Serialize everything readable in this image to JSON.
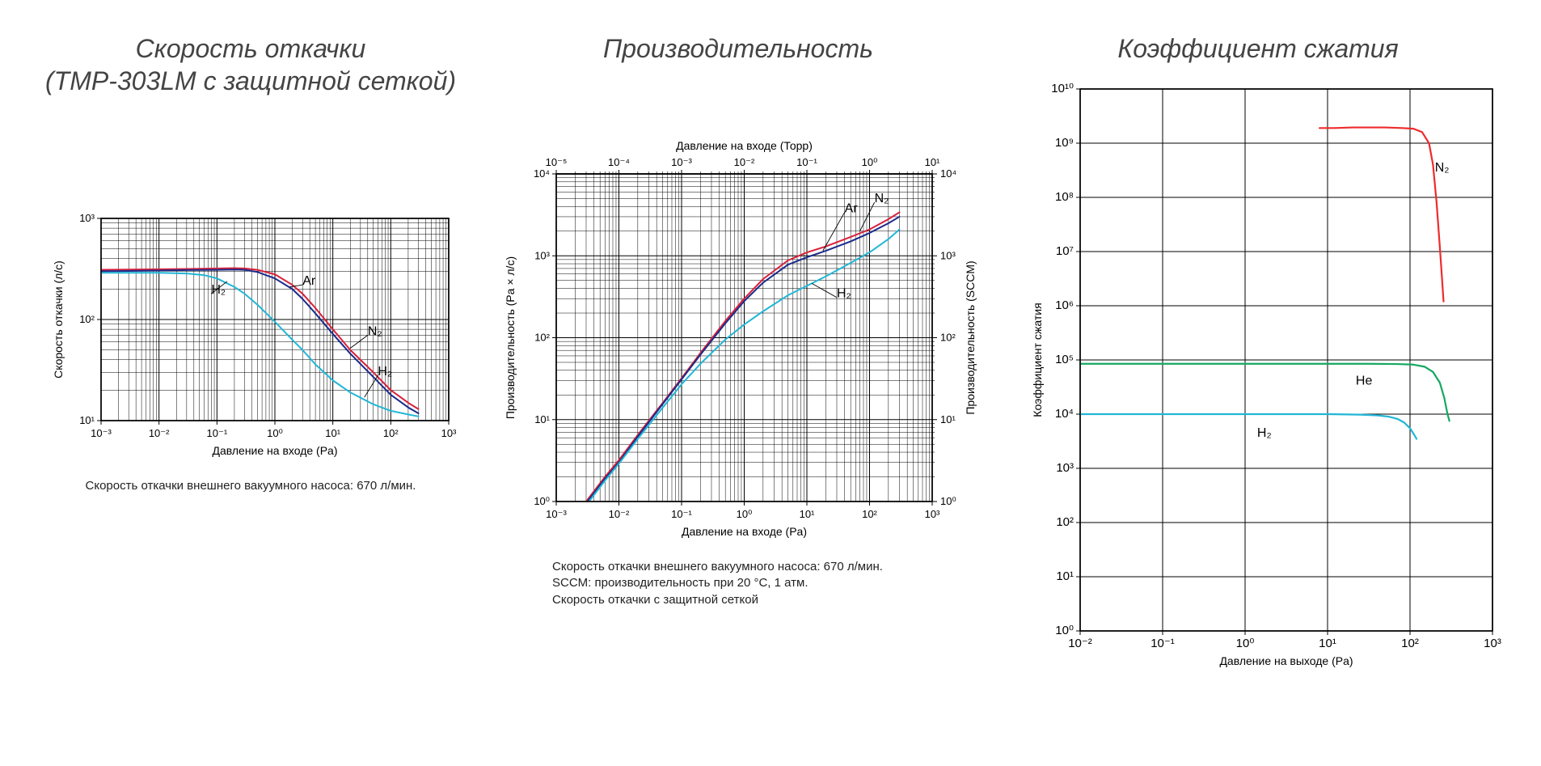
{
  "panels": {
    "pump_speed": {
      "title_line1": "Скорость откачки",
      "title_line2": "(TMP-303LM с защитной сеткой)",
      "chart": {
        "type": "line",
        "xscale": "log",
        "yscale": "log",
        "xlim": [
          0.001,
          1000
        ],
        "ylim": [
          10,
          1000
        ],
        "xticks": [
          0.001,
          0.01,
          0.1,
          1,
          10,
          100,
          1000
        ],
        "xtick_labels": [
          "10⁻³",
          "10⁻²",
          "10⁻¹",
          "10⁰",
          "10¹",
          "10²",
          "10³"
        ],
        "yticks": [
          10,
          100,
          1000
        ],
        "ytick_labels": [
          "10¹",
          "10²",
          "10³"
        ],
        "xlabel": "Давление на входе (Pa)",
        "ylabel": "Скорость откачки (л/с)",
        "background_color": "#ffffff",
        "grid_color": "#000000",
        "axis_color": "#000000",
        "line_width": 2,
        "label_fontsize": 14,
        "tick_fontsize": 13,
        "title_fontsize": 32,
        "series": [
          {
            "name": "N₂",
            "color": "#d8213a",
            "label": "N₂",
            "points": [
              [
                0.001,
                310
              ],
              [
                0.003,
                312
              ],
              [
                0.01,
                314
              ],
              [
                0.03,
                316
              ],
              [
                0.1,
                320
              ],
              [
                0.2,
                322
              ],
              [
                0.3,
                320
              ],
              [
                0.5,
                310
              ],
              [
                1,
                280
              ],
              [
                2,
                220
              ],
              [
                3,
                180
              ],
              [
                5,
                130
              ],
              [
                10,
                80
              ],
              [
                20,
                50
              ],
              [
                50,
                30
              ],
              [
                100,
                20
              ],
              [
                200,
                15
              ],
              [
                300,
                13
              ]
            ]
          },
          {
            "name": "Ar",
            "color": "#1a2b8a",
            "label": "Ar",
            "points": [
              [
                0.001,
                300
              ],
              [
                0.003,
                302
              ],
              [
                0.01,
                305
              ],
              [
                0.03,
                308
              ],
              [
                0.1,
                310
              ],
              [
                0.2,
                312
              ],
              [
                0.3,
                310
              ],
              [
                0.5,
                295
              ],
              [
                1,
                255
              ],
              [
                2,
                200
              ],
              [
                3,
                160
              ],
              [
                5,
                115
              ],
              [
                10,
                72
              ],
              [
                20,
                46
              ],
              [
                50,
                27
              ],
              [
                100,
                18
              ],
              [
                200,
                13.5
              ],
              [
                300,
                11.8
              ]
            ]
          },
          {
            "name": "H₂",
            "color": "#22b6d6",
            "label": "H₂",
            "points": [
              [
                0.001,
                290
              ],
              [
                0.003,
                290
              ],
              [
                0.01,
                290
              ],
              [
                0.03,
                285
              ],
              [
                0.06,
                275
              ],
              [
                0.1,
                255
              ],
              [
                0.2,
                210
              ],
              [
                0.3,
                180
              ],
              [
                0.5,
                140
              ],
              [
                1,
                95
              ],
              [
                2,
                63
              ],
              [
                3,
                50
              ],
              [
                5,
                36
              ],
              [
                10,
                25
              ],
              [
                20,
                19
              ],
              [
                50,
                14.5
              ],
              [
                100,
                12.5
              ],
              [
                200,
                11.5
              ],
              [
                300,
                11
              ]
            ]
          }
        ],
        "series_annot": [
          {
            "text": "Ar",
            "x": 3,
            "y": 220,
            "line_to": [
              1.8,
              210
            ]
          },
          {
            "text": "N₂",
            "x": 40,
            "y": 70,
            "line_to": [
              20,
              52
            ]
          },
          {
            "text": "H₂",
            "x": 0.08,
            "y": 180,
            "line_to": [
              0.15,
              238
            ]
          },
          {
            "text": "H₂",
            "x": 60,
            "y": 28,
            "line_to": [
              35,
              17
            ]
          }
        ]
      },
      "caption": "Скорость откачки внешнего вакуумного насоса: 670 л/мин."
    },
    "throughput": {
      "title": "Производительность",
      "chart": {
        "type": "line",
        "xscale": "log",
        "yscale": "log",
        "xlim": [
          0.001,
          1000
        ],
        "ylim": [
          1,
          10000
        ],
        "xticks": [
          0.001,
          0.01,
          0.1,
          1,
          10,
          100,
          1000
        ],
        "xtick_labels": [
          "10⁻³",
          "10⁻²",
          "10⁻¹",
          "10⁰",
          "10¹",
          "10²",
          "10³"
        ],
        "yticks": [
          1,
          10,
          100,
          1000,
          10000
        ],
        "ytick_labels": [
          "10⁰",
          "10¹",
          "10²",
          "10³",
          "10⁴"
        ],
        "xlabel": "Давление на входе (Pa)",
        "ylabel_left": "Производительность (Pa × л/с)",
        "ylabel_right": "Производительность (SCCM)",
        "x2lim": [
          1e-05,
          10
        ],
        "x2ticks": [
          1e-05,
          0.0001,
          0.001,
          0.01,
          0.1,
          1,
          10
        ],
        "x2tick_labels": [
          "10⁻⁵",
          "10⁻⁴",
          "10⁻³",
          "10⁻²",
          "10⁻¹",
          "10⁰",
          "10¹"
        ],
        "x2label": "Давление на входе (Торр)",
        "y2lim": [
          1,
          10000
        ],
        "y2ticks": [
          1,
          10,
          100,
          1000,
          10000
        ],
        "y2tick_labels": [
          "10⁰",
          "10¹",
          "10²",
          "10³",
          "10⁴"
        ],
        "background_color": "#ffffff",
        "grid_color": "#000000",
        "axis_color": "#000000",
        "line_width": 2,
        "label_fontsize": 14,
        "tick_fontsize": 13,
        "title_fontsize": 32,
        "series": [
          {
            "name": "N₂",
            "color": "#d8213a",
            "label": "N₂",
            "points": [
              [
                0.003,
                1
              ],
              [
                0.006,
                2
              ],
              [
                0.01,
                3.2
              ],
              [
                0.02,
                6.5
              ],
              [
                0.05,
                16
              ],
              [
                0.1,
                32
              ],
              [
                0.2,
                65
              ],
              [
                0.5,
                160
              ],
              [
                1,
                300
              ],
              [
                2,
                520
              ],
              [
                5,
                880
              ],
              [
                10,
                1100
              ],
              [
                20,
                1300
              ],
              [
                50,
                1700
              ],
              [
                100,
                2100
              ],
              [
                200,
                2800
              ],
              [
                300,
                3400
              ]
            ]
          },
          {
            "name": "Ar",
            "color": "#1a2b8a",
            "label": "Ar",
            "points": [
              [
                0.003,
                0.95
              ],
              [
                0.006,
                1.9
              ],
              [
                0.01,
                3.0
              ],
              [
                0.02,
                6.2
              ],
              [
                0.05,
                15.5
              ],
              [
                0.1,
                31
              ],
              [
                0.2,
                62
              ],
              [
                0.5,
                150
              ],
              [
                1,
                280
              ],
              [
                2,
                470
              ],
              [
                5,
                780
              ],
              [
                10,
                960
              ],
              [
                20,
                1150
              ],
              [
                50,
                1500
              ],
              [
                100,
                1900
              ],
              [
                200,
                2500
              ],
              [
                300,
                3000
              ]
            ]
          },
          {
            "name": "H₂",
            "color": "#22b6d6",
            "label": "H₂",
            "points": [
              [
                0.003,
                0.9
              ],
              [
                0.006,
                1.8
              ],
              [
                0.01,
                2.9
              ],
              [
                0.02,
                5.8
              ],
              [
                0.05,
                14
              ],
              [
                0.1,
                27
              ],
              [
                0.2,
                48
              ],
              [
                0.5,
                95
              ],
              [
                1,
                145
              ],
              [
                2,
                210
              ],
              [
                5,
                330
              ],
              [
                10,
                430
              ],
              [
                20,
                560
              ],
              [
                50,
                820
              ],
              [
                100,
                1100
              ],
              [
                200,
                1600
              ],
              [
                300,
                2100
              ]
            ]
          }
        ],
        "series_annot": [
          {
            "text": "N₂",
            "x": 120,
            "y": 4500,
            "line_to": [
              70,
              2000
            ]
          },
          {
            "text": "Ar",
            "x": 40,
            "y": 3400,
            "line_to": [
              18,
              1150
            ]
          },
          {
            "text": "H₂",
            "x": 30,
            "y": 310,
            "line_to": [
              12,
              460
            ]
          }
        ]
      },
      "caption_lines": [
        "Скорость откачки внешнего вакуумного насоса: 670 л/мин.",
        "SCCM: производительность при 20 °C, 1 атм.",
        "Скорость откачки с защитной сеткой"
      ]
    },
    "compression": {
      "title": "Коэффициент сжатия",
      "chart": {
        "type": "line",
        "xscale": "log",
        "yscale": "log",
        "xlim": [
          0.01,
          1000
        ],
        "ylim": [
          1,
          10000000000.0
        ],
        "xticks": [
          0.01,
          0.1,
          1,
          10,
          100,
          1000
        ],
        "xtick_labels": [
          "10⁻²",
          "10⁻¹",
          "10⁰",
          "10¹",
          "10²",
          "10³"
        ],
        "yticks": [
          1,
          10,
          100,
          1000,
          10000,
          100000,
          1000000,
          10000000,
          100000000,
          1000000000,
          10000000000
        ],
        "ytick_labels": [
          "10⁰",
          "10¹",
          "10²",
          "10³",
          "10⁴",
          "10⁵",
          "10⁶",
          "10⁷",
          "10⁸",
          "10⁹",
          "10¹⁰"
        ],
        "xlabel": "Давление на выходе (Pa)",
        "ylabel": "Коэффициент сжатия",
        "background_color": "#ffffff",
        "grid_color": "#000000",
        "axis_color": "#000000",
        "line_width": 2.2,
        "label_fontsize": 14,
        "tick_fontsize": 15,
        "title_fontsize": 32,
        "minor_grid": false,
        "series": [
          {
            "name": "N₂",
            "color": "#ef2b2b",
            "label": "N₂",
            "points": [
              [
                8,
                1900000000.0
              ],
              [
                12,
                1900000000.0
              ],
              [
                20,
                1950000000.0
              ],
              [
                30,
                1950000000.0
              ],
              [
                50,
                1950000000.0
              ],
              [
                80,
                1900000000.0
              ],
              [
                110,
                1850000000.0
              ],
              [
                140,
                1600000000.0
              ],
              [
                170,
                1000000000.0
              ],
              [
                190,
                400000000.0
              ],
              [
                210,
                80000000.0
              ],
              [
                230,
                12000000.0
              ],
              [
                245,
                3000000.0
              ],
              [
                255,
                1200000.0
              ]
            ]
          },
          {
            "name": "He",
            "color": "#16a860",
            "label": "He",
            "points": [
              [
                0.01,
                85000.0
              ],
              [
                0.03,
                85000.0
              ],
              [
                0.1,
                85000.0
              ],
              [
                0.3,
                85000.0
              ],
              [
                1,
                85000.0
              ],
              [
                3,
                85000.0
              ],
              [
                10,
                85000.0
              ],
              [
                30,
                85000.0
              ],
              [
                70,
                84000.0
              ],
              [
                110,
                82000.0
              ],
              [
                150,
                75000.0
              ],
              [
                190,
                60000.0
              ],
              [
                230,
                38000.0
              ],
              [
                260,
                20000.0
              ],
              [
                285,
                10000.0
              ],
              [
                300,
                7500.0
              ]
            ]
          },
          {
            "name": "H₂",
            "color": "#22b6d6",
            "label": "H₂",
            "points": [
              [
                0.01,
                10000.0
              ],
              [
                0.03,
                10000.0
              ],
              [
                0.1,
                10000.0
              ],
              [
                0.3,
                10000.0
              ],
              [
                1,
                10000.0
              ],
              [
                3,
                10000.0
              ],
              [
                10,
                10000.0
              ],
              [
                25,
                9800.0
              ],
              [
                40,
                9500.0
              ],
              [
                55,
                9000.0
              ],
              [
                70,
                8200.0
              ],
              [
                85,
                7000.0
              ],
              [
                100,
                5500.0
              ],
              [
                112,
                4200.0
              ],
              [
                120,
                3500.0
              ]
            ]
          }
        ],
        "series_annot": [
          {
            "text": "N₂",
            "x": 200,
            "y": 300000000.0
          },
          {
            "text": "He",
            "x": 22,
            "y": 35000.0
          },
          {
            "text": "H₂",
            "x": 1.4,
            "y": 3800
          }
        ]
      }
    }
  }
}
